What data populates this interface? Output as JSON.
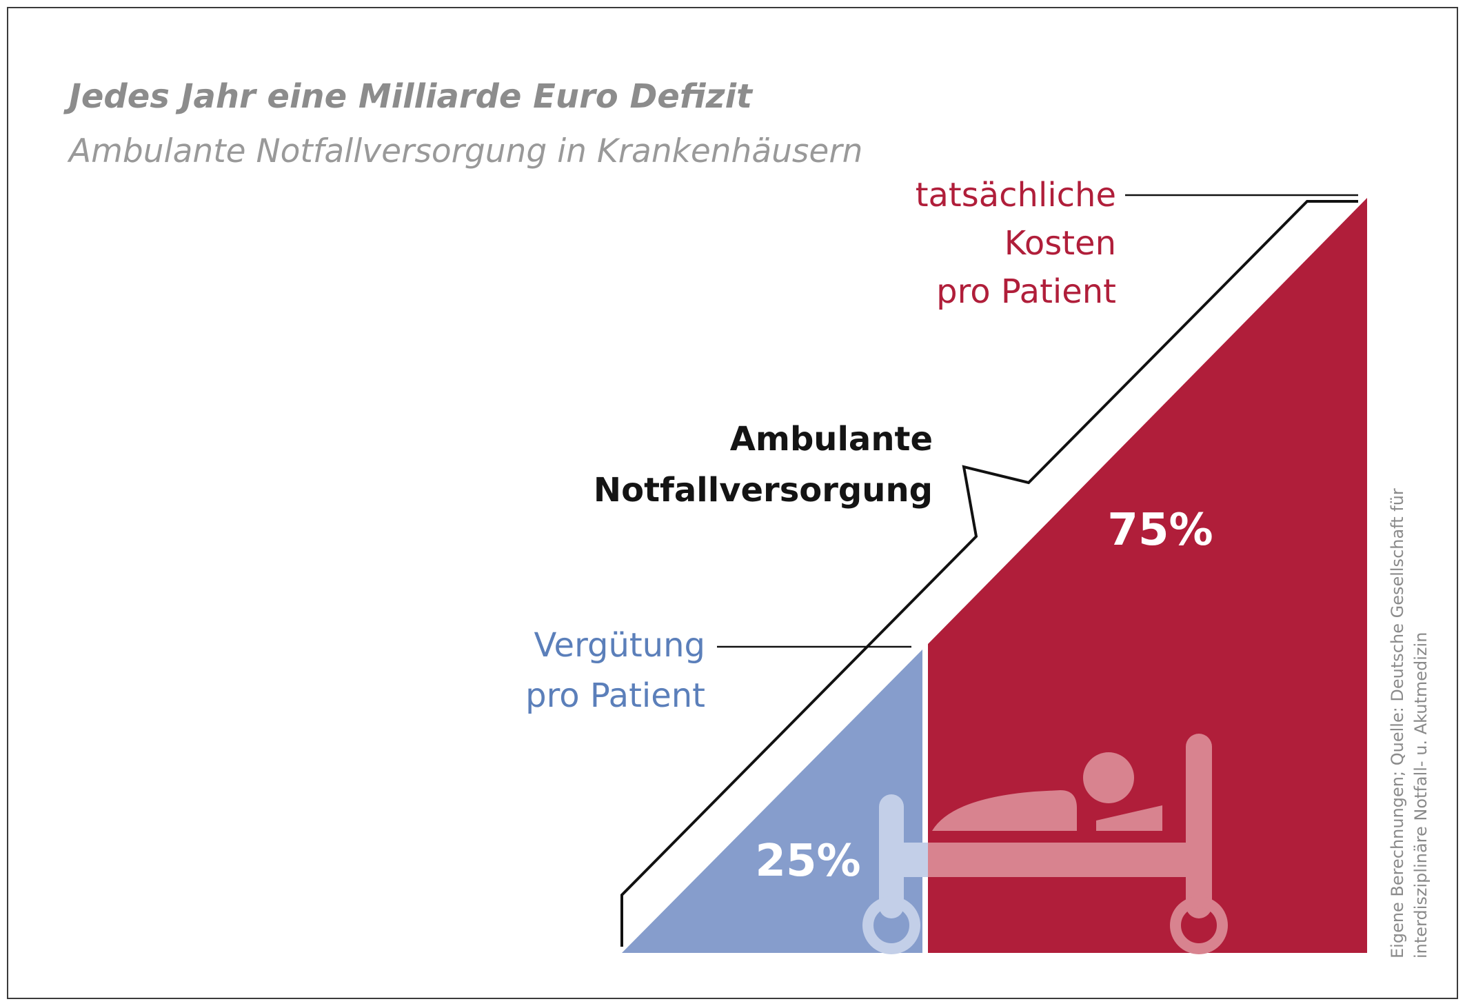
{
  "title": "Jedes Jahr eine Milliarde Euro Defizit",
  "subtitle": "Ambulante Notfallversorgung in Krankenhäusern",
  "labels": {
    "actual_cost": [
      "tatsächliche",
      "Kosten",
      "pro Patient"
    ],
    "reimbursement": [
      "Vergütung",
      "pro Patient"
    ],
    "category": [
      "Ambulante",
      "Notfallversorgung"
    ]
  },
  "source_note": [
    "Eigene Berechnungen; Quelle: Deutsche Gesellschaft für",
    "interdisziplinäre Notfall- u. Akutmedizin"
  ],
  "icons": [
    "hospital-bed-icon"
  ],
  "colors": {
    "reimbursement": "#869dcc",
    "cost": "#b01e3a",
    "bed_on_cost": "#d8838f",
    "bed_on_reimbursement": "#c3cfe8",
    "title": "#8c8c8c"
  },
  "chart_data": {
    "type": "area",
    "title": "Jedes Jahr eine Milliarde Euro Defizit",
    "subtitle": "Ambulante Notfallversorgung in Krankenhäusern",
    "series": [
      {
        "name": "Vergütung pro Patient",
        "value_label": "25%",
        "value": 25
      },
      {
        "name": "tatsächliche Kosten pro Patient",
        "value_label": "75%",
        "value": 75
      }
    ],
    "annotation": "Ambulante Notfallversorgung",
    "legend": "none"
  }
}
